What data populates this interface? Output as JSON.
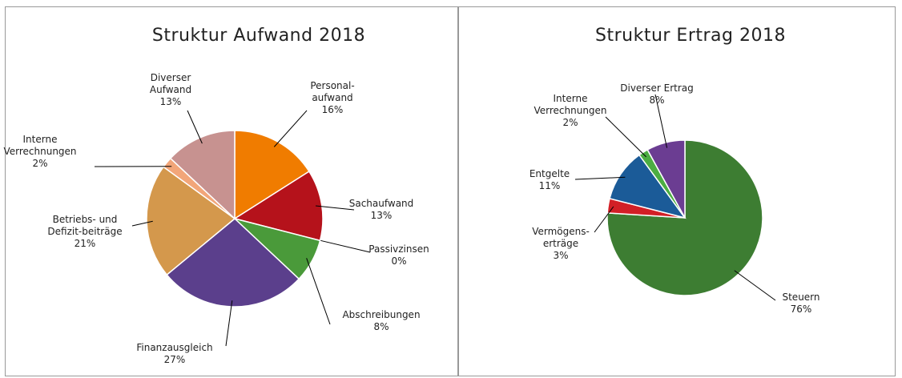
{
  "chart_data": [
    {
      "type": "pie",
      "title": "Struktur Aufwand 2018",
      "categories": [
        "Personal-\naufwand",
        "Sachaufwand",
        "Passivzinsen",
        "Abschreibungen",
        "Finanzausgleich",
        "Betriebs- und\nDefizit-beiträge",
        "Interne\nVerrechnungen",
        "Diverser\nAufwand"
      ],
      "values": [
        16,
        13,
        0,
        8,
        27,
        21,
        2,
        13
      ],
      "value_labels": [
        "16%",
        "13%",
        "0%",
        "8%",
        "27%",
        "21%",
        "2%",
        "13%"
      ],
      "colors": [
        "#f07c00",
        "#b5121b",
        "#8fc46a",
        "#4a9a3a",
        "#5b3f8c",
        "#d4984c",
        "#f2a679",
        "#c79290"
      ]
    },
    {
      "type": "pie",
      "title": "Struktur Ertrag 2018",
      "categories": [
        "Steuern",
        "Vermögens-\nerträge",
        "Entgelte",
        "Interne\nVerrechnungen",
        "Diverser Ertrag"
      ],
      "values": [
        76,
        3,
        11,
        2,
        8
      ],
      "value_labels": [
        "76%",
        "3%",
        "11%",
        "2%",
        "8%"
      ],
      "colors": [
        "#3d7d32",
        "#d21f26",
        "#1b5b98",
        "#4cad42",
        "#6b3d92"
      ]
    }
  ]
}
